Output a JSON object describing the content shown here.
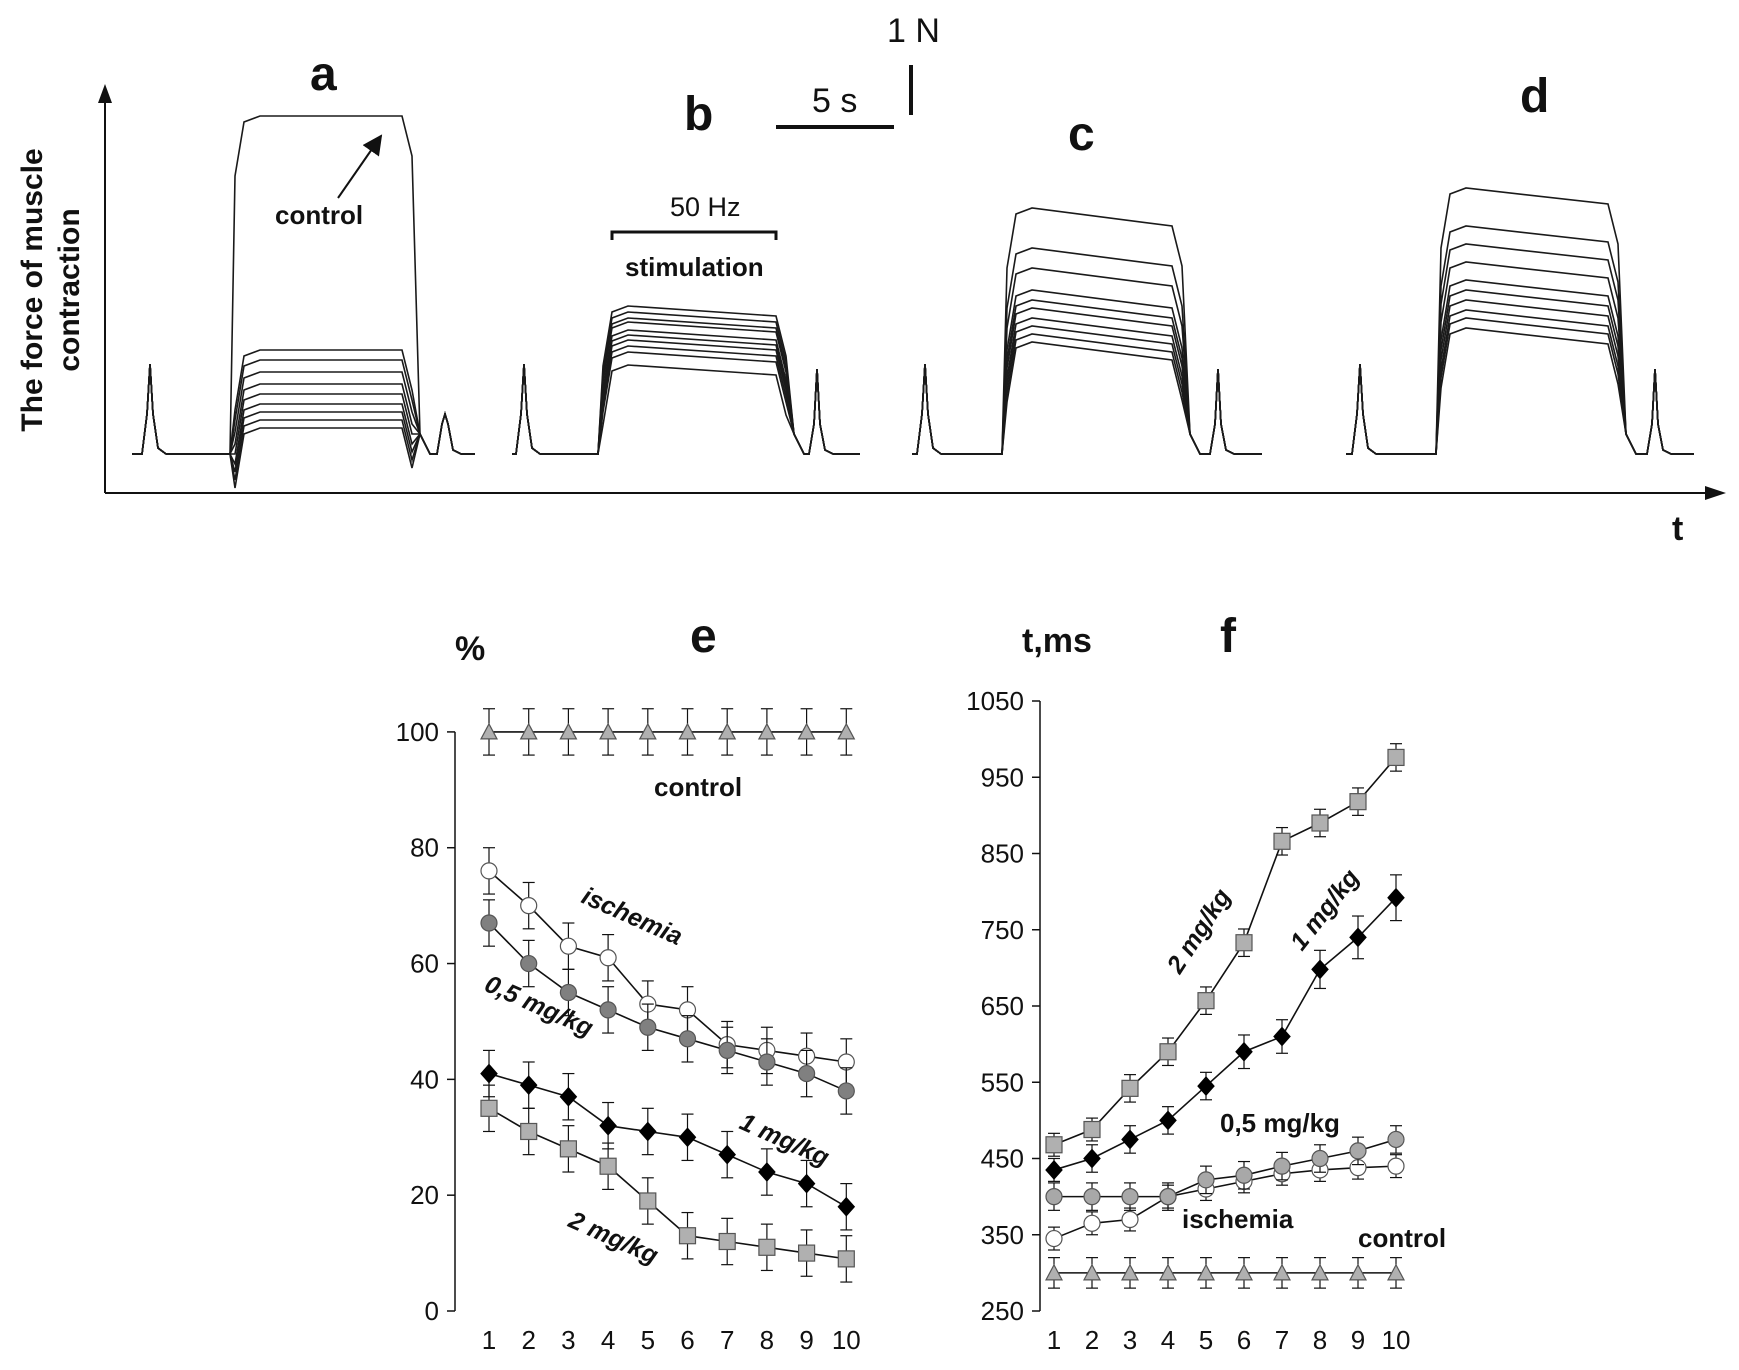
{
  "top": {
    "y_axis_label_line1": "The force of muscle",
    "y_axis_label_line2": "contraction",
    "x_axis_label": "t",
    "scale_force": "1 N",
    "scale_time": "5 s",
    "stimulation_freq": "50 Hz",
    "stimulation_label": "stimulation",
    "control_annotation": "control",
    "panels": [
      "a",
      "b",
      "c",
      "d"
    ]
  },
  "chart_data": [
    {
      "panel": "e",
      "type": "line",
      "ylabel": "%",
      "xlabel": "",
      "x": [
        1,
        2,
        3,
        4,
        5,
        6,
        7,
        8,
        9,
        10
      ],
      "ylim": [
        0,
        110
      ],
      "yticks": [
        0,
        20,
        40,
        60,
        80,
        100
      ],
      "series": [
        {
          "name": "control",
          "label": "control",
          "marker": "triangle",
          "fill": "#b0b0b0",
          "values": [
            100,
            100,
            100,
            100,
            100,
            100,
            100,
            100,
            100,
            100
          ],
          "errors": [
            4,
            4,
            4,
            4,
            4,
            4,
            4,
            4,
            4,
            4
          ]
        },
        {
          "name": "ischemia",
          "label": "ischemia",
          "marker": "circle",
          "fill": "#ffffff",
          "values": [
            76,
            70,
            63,
            61,
            53,
            52,
            46,
            45,
            44,
            43
          ],
          "errors": [
            4,
            4,
            4,
            4,
            4,
            4,
            4,
            4,
            4,
            4
          ]
        },
        {
          "name": "0,5 mg/kg",
          "label": "0,5 mg/kg",
          "marker": "circle",
          "fill": "#808080",
          "values": [
            67,
            60,
            55,
            52,
            49,
            47,
            45,
            43,
            41,
            38
          ],
          "errors": [
            4,
            4,
            4,
            4,
            4,
            4,
            4,
            4,
            4,
            4
          ]
        },
        {
          "name": "1 mg/kg",
          "label": "1 mg/kg",
          "marker": "diamond",
          "fill": "#000000",
          "values": [
            41,
            39,
            37,
            32,
            31,
            30,
            27,
            24,
            22,
            18
          ],
          "errors": [
            4,
            4,
            4,
            4,
            4,
            4,
            4,
            4,
            4,
            4
          ]
        },
        {
          "name": "2 mg/kg",
          "label": "2 mg/kg",
          "marker": "square",
          "fill": "#b0b0b0",
          "values": [
            35,
            31,
            28,
            25,
            19,
            13,
            12,
            11,
            10,
            9
          ],
          "errors": [
            4,
            4,
            4,
            4,
            4,
            4,
            4,
            4,
            4,
            4
          ]
        }
      ]
    },
    {
      "panel": "f",
      "type": "line",
      "ylabel": "t,ms",
      "xlabel": "",
      "x": [
        1,
        2,
        3,
        4,
        5,
        6,
        7,
        8,
        9,
        10
      ],
      "ylim": [
        250,
        1050
      ],
      "yticks": [
        250,
        350,
        450,
        550,
        650,
        750,
        850,
        950,
        1050
      ],
      "series": [
        {
          "name": "control",
          "label": "control",
          "marker": "triangle",
          "fill": "#b0b0b0",
          "values": [
            300,
            300,
            300,
            300,
            300,
            300,
            300,
            300,
            300,
            300
          ],
          "errors": [
            20,
            20,
            20,
            20,
            20,
            20,
            20,
            20,
            20,
            20
          ]
        },
        {
          "name": "ischemia",
          "label": "ischemia",
          "marker": "circle",
          "fill": "#ffffff",
          "values": [
            345,
            365,
            370,
            400,
            410,
            420,
            430,
            435,
            438,
            440
          ],
          "errors": [
            15,
            15,
            15,
            15,
            15,
            15,
            15,
            15,
            15,
            15
          ]
        },
        {
          "name": "0,5 mg/kg",
          "label": "0,5 mg/kg",
          "marker": "circle",
          "fill": "#a8a8a8",
          "values": [
            400,
            400,
            400,
            400,
            422,
            428,
            440,
            450,
            460,
            475
          ],
          "errors": [
            18,
            18,
            18,
            18,
            18,
            18,
            18,
            18,
            18,
            18
          ]
        },
        {
          "name": "1 mg/kg",
          "label": "1 mg/kg",
          "marker": "diamond",
          "fill": "#000000",
          "values": [
            435,
            450,
            475,
            500,
            545,
            590,
            610,
            698,
            740,
            792
          ],
          "errors": [
            15,
            18,
            18,
            18,
            18,
            22,
            22,
            25,
            28,
            30
          ]
        },
        {
          "name": "2 mg/kg",
          "label": "2 mg/kg",
          "marker": "square",
          "fill": "#b0b0b0",
          "values": [
            468,
            488,
            542,
            590,
            657,
            733,
            866,
            890,
            918,
            976
          ],
          "errors": [
            15,
            15,
            18,
            18,
            18,
            18,
            18,
            18,
            18,
            18
          ]
        }
      ]
    }
  ]
}
